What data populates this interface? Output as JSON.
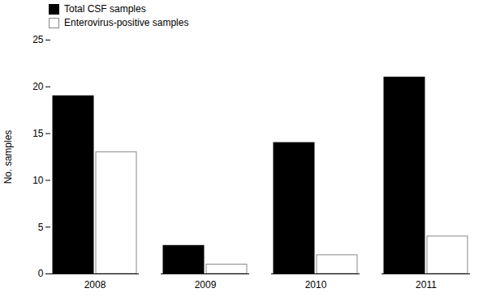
{
  "chart_data": {
    "type": "bar",
    "categories": [
      "2008",
      "2009",
      "2010",
      "2011"
    ],
    "series": [
      {
        "name": "Total CSF samples",
        "color": "#000000",
        "values": [
          19,
          3,
          14,
          21
        ]
      },
      {
        "name": "Enterovirus-positive samples",
        "color": "#ffffff",
        "values": [
          13,
          1,
          2,
          4
        ]
      }
    ],
    "ylabel": "No. samples",
    "ylim": [
      0,
      25
    ],
    "yticks": [
      0,
      5,
      10,
      15,
      20,
      25
    ],
    "legend": "upper left",
    "grid": false
  }
}
